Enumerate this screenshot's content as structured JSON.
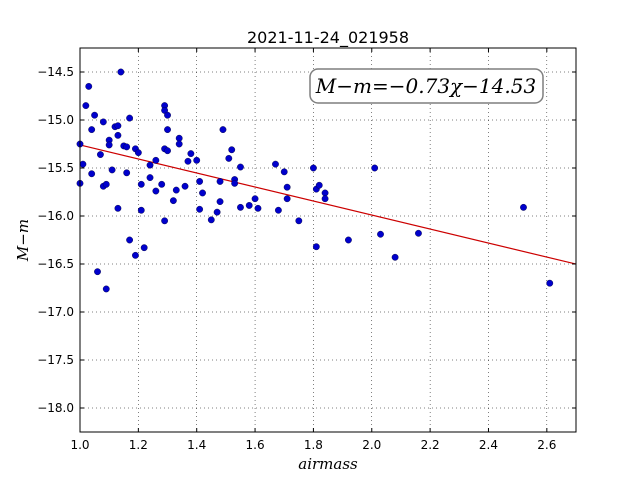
{
  "chart_data": {
    "type": "scatter",
    "title": "2021-11-24_021958",
    "xlabel": "airmass",
    "ylabel": "M−m",
    "xlim": [
      1.0,
      2.7
    ],
    "ylim": [
      -18.25,
      -14.25
    ],
    "y_inverted": true,
    "grid": true,
    "x_ticks": [
      "1.0",
      "1.2",
      "1.4",
      "1.6",
      "1.8",
      "2.0",
      "2.2",
      "2.4",
      "2.6"
    ],
    "y_ticks": [
      "−14.5",
      "−15.0",
      "−15.5",
      "−16.0",
      "−16.5",
      "−17.0",
      "−17.5",
      "−18.0"
    ],
    "annotation": "M−m=−0.73χ−14.53",
    "point_color": "#0000cc",
    "fit_color": "#cc0000",
    "fit": {
      "slope": -0.73,
      "intercept": -14.53
    },
    "points": [
      {
        "x": 1.0,
        "y": -15.66
      },
      {
        "x": 1.0,
        "y": -15.25
      },
      {
        "x": 1.01,
        "y": -15.46
      },
      {
        "x": 1.02,
        "y": -14.85
      },
      {
        "x": 1.03,
        "y": -14.65
      },
      {
        "x": 1.04,
        "y": -15.1
      },
      {
        "x": 1.04,
        "y": -15.56
      },
      {
        "x": 1.05,
        "y": -14.95
      },
      {
        "x": 1.06,
        "y": -16.58
      },
      {
        "x": 1.07,
        "y": -15.36
      },
      {
        "x": 1.08,
        "y": -15.02
      },
      {
        "x": 1.08,
        "y": -15.69
      },
      {
        "x": 1.09,
        "y": -16.76
      },
      {
        "x": 1.09,
        "y": -15.67
      },
      {
        "x": 1.1,
        "y": -15.21
      },
      {
        "x": 1.1,
        "y": -15.26
      },
      {
        "x": 1.11,
        "y": -15.52
      },
      {
        "x": 1.12,
        "y": -15.07
      },
      {
        "x": 1.13,
        "y": -15.06
      },
      {
        "x": 1.13,
        "y": -15.16
      },
      {
        "x": 1.13,
        "y": -15.92
      },
      {
        "x": 1.14,
        "y": -14.5
      },
      {
        "x": 1.15,
        "y": -15.27
      },
      {
        "x": 1.16,
        "y": -15.28
      },
      {
        "x": 1.16,
        "y": -15.55
      },
      {
        "x": 1.17,
        "y": -14.98
      },
      {
        "x": 1.17,
        "y": -16.25
      },
      {
        "x": 1.19,
        "y": -15.3
      },
      {
        "x": 1.19,
        "y": -16.41
      },
      {
        "x": 1.2,
        "y": -15.34
      },
      {
        "x": 1.21,
        "y": -15.67
      },
      {
        "x": 1.21,
        "y": -15.94
      },
      {
        "x": 1.22,
        "y": -16.33
      },
      {
        "x": 1.24,
        "y": -15.47
      },
      {
        "x": 1.24,
        "y": -15.6
      },
      {
        "x": 1.26,
        "y": -15.42
      },
      {
        "x": 1.26,
        "y": -15.74
      },
      {
        "x": 1.28,
        "y": -15.67
      },
      {
        "x": 1.29,
        "y": -15.3
      },
      {
        "x": 1.29,
        "y": -16.05
      },
      {
        "x": 1.29,
        "y": -14.85
      },
      {
        "x": 1.29,
        "y": -14.9
      },
      {
        "x": 1.3,
        "y": -14.95
      },
      {
        "x": 1.3,
        "y": -15.32
      },
      {
        "x": 1.3,
        "y": -15.1
      },
      {
        "x": 1.32,
        "y": -15.84
      },
      {
        "x": 1.33,
        "y": -15.73
      },
      {
        "x": 1.34,
        "y": -15.19
      },
      {
        "x": 1.34,
        "y": -15.25
      },
      {
        "x": 1.36,
        "y": -15.69
      },
      {
        "x": 1.37,
        "y": -15.43
      },
      {
        "x": 1.38,
        "y": -15.35
      },
      {
        "x": 1.4,
        "y": -15.42
      },
      {
        "x": 1.41,
        "y": -15.64
      },
      {
        "x": 1.41,
        "y": -15.93
      },
      {
        "x": 1.42,
        "y": -15.76
      },
      {
        "x": 1.45,
        "y": -16.04
      },
      {
        "x": 1.47,
        "y": -15.96
      },
      {
        "x": 1.48,
        "y": -15.85
      },
      {
        "x": 1.48,
        "y": -15.64
      },
      {
        "x": 1.49,
        "y": -15.1
      },
      {
        "x": 1.51,
        "y": -15.4
      },
      {
        "x": 1.52,
        "y": -15.31
      },
      {
        "x": 1.53,
        "y": -15.62
      },
      {
        "x": 1.53,
        "y": -15.66
      },
      {
        "x": 1.55,
        "y": -15.49
      },
      {
        "x": 1.55,
        "y": -15.91
      },
      {
        "x": 1.58,
        "y": -15.89
      },
      {
        "x": 1.6,
        "y": -15.82
      },
      {
        "x": 1.61,
        "y": -15.92
      },
      {
        "x": 1.67,
        "y": -15.46
      },
      {
        "x": 1.68,
        "y": -15.94
      },
      {
        "x": 1.7,
        "y": -15.54
      },
      {
        "x": 1.71,
        "y": -15.82
      },
      {
        "x": 1.71,
        "y": -15.7
      },
      {
        "x": 1.75,
        "y": -16.05
      },
      {
        "x": 1.8,
        "y": -15.5
      },
      {
        "x": 1.81,
        "y": -15.72
      },
      {
        "x": 1.81,
        "y": -16.32
      },
      {
        "x": 1.82,
        "y": -15.68
      },
      {
        "x": 1.84,
        "y": -15.76
      },
      {
        "x": 1.84,
        "y": -15.82
      },
      {
        "x": 1.92,
        "y": -16.25
      },
      {
        "x": 2.01,
        "y": -15.5
      },
      {
        "x": 2.03,
        "y": -16.19
      },
      {
        "x": 2.08,
        "y": -16.43
      },
      {
        "x": 2.16,
        "y": -16.18
      },
      {
        "x": 2.52,
        "y": -15.91
      },
      {
        "x": 2.61,
        "y": -16.7
      }
    ]
  }
}
